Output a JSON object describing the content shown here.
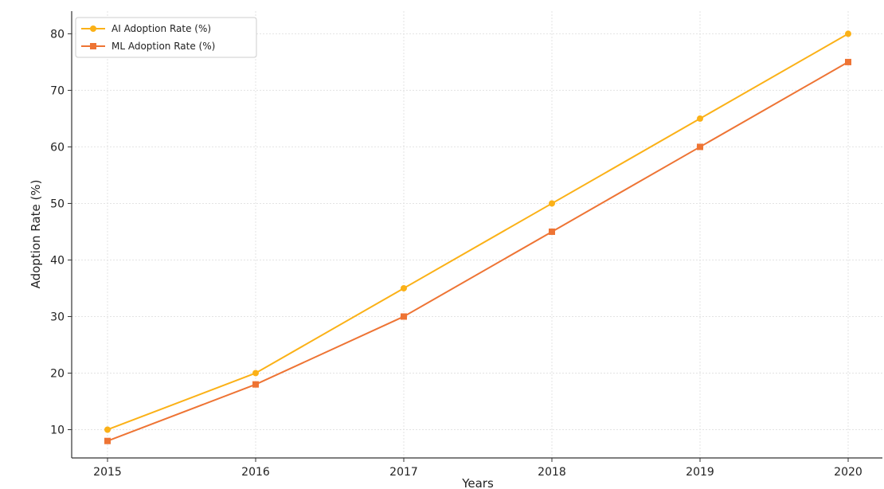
{
  "chart_data": {
    "type": "line",
    "title": "",
    "xlabel": "Years",
    "ylabel": "Adoption Rate (%)",
    "categories": [
      "2015",
      "2016",
      "2017",
      "2018",
      "2019",
      "2020"
    ],
    "ylim": [
      5,
      84
    ],
    "yticks": [
      10,
      20,
      30,
      40,
      50,
      60,
      70,
      80
    ],
    "grid": true,
    "legend_position": "top-left",
    "series": [
      {
        "name": "AI Adoption Rate (%)",
        "values": [
          10,
          20,
          35,
          50,
          65,
          80
        ],
        "color": "#FBB117",
        "marker": "circle"
      },
      {
        "name": "ML Adoption Rate (%)",
        "values": [
          8,
          18,
          30,
          45,
          60,
          75
        ],
        "color": "#EE7434",
        "marker": "square"
      }
    ]
  }
}
